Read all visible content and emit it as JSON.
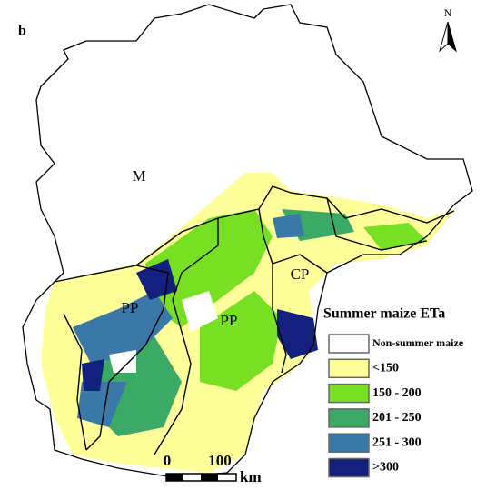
{
  "panel_label": "b",
  "north_label": "N",
  "regions": [
    "M",
    "PP",
    "PP",
    "CP"
  ],
  "legend": {
    "title": "Summer maize ETa",
    "items": [
      {
        "label": "Non-summer maize",
        "color": "#ffffff"
      },
      {
        "label": "<150",
        "color": "#ffff99"
      },
      {
        "label": "150 - 200",
        "color": "#77e022"
      },
      {
        "label": "201 - 250",
        "color": "#3aaa66"
      },
      {
        "label": "251 - 300",
        "color": "#3a78a8"
      },
      {
        "label": ">300",
        "color": "#14207e"
      }
    ]
  },
  "scale_bar": {
    "labels": [
      "0",
      "100"
    ],
    "unit": "km"
  }
}
